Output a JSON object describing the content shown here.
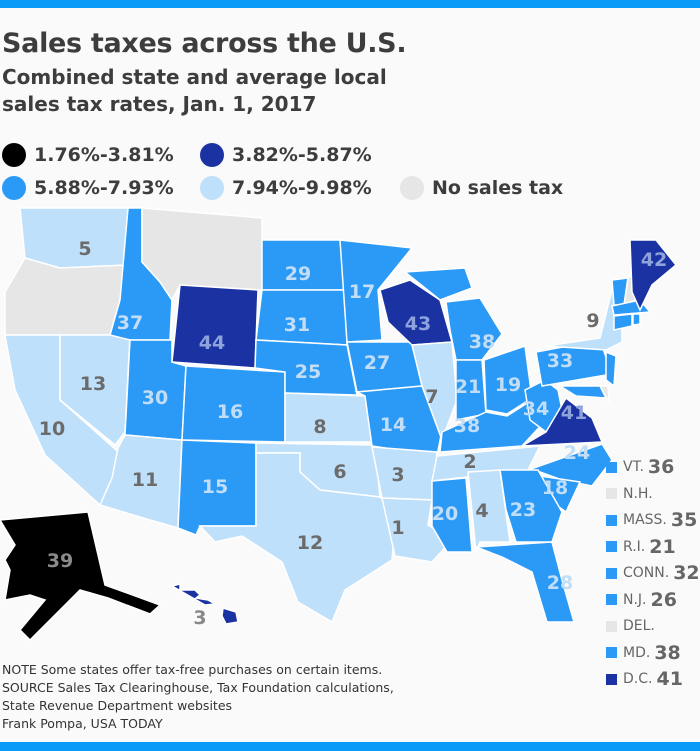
{
  "title": "Sales taxes across the U.S.",
  "subtitle": "Combined state and average local sales tax rates, Jan. 1, 2017",
  "colors": {
    "black": "#000000",
    "dark": "#1b33a2",
    "medium": "#2b9af7",
    "light": "#bfe0fa",
    "none": "#e6e6e6",
    "accent_bar": "#0a9af8"
  },
  "legend": [
    {
      "label": "1.76%-3.81%",
      "category": "black"
    },
    {
      "label": "3.82%-5.87%",
      "category": "dark"
    },
    {
      "label": "5.88%-7.93%",
      "category": "medium"
    },
    {
      "label": "7.94%-9.98%",
      "category": "light"
    },
    {
      "label": "No sales tax",
      "category": "none"
    }
  ],
  "states": [
    {
      "abbr": "WA",
      "rank": "5",
      "category": "light"
    },
    {
      "abbr": "OR",
      "rank": "",
      "category": "none"
    },
    {
      "abbr": "CA",
      "rank": "10",
      "category": "light"
    },
    {
      "abbr": "NV",
      "rank": "13",
      "category": "light"
    },
    {
      "abbr": "ID",
      "rank": "37",
      "category": "medium"
    },
    {
      "abbr": "MT",
      "rank": "",
      "category": "none"
    },
    {
      "abbr": "WY",
      "rank": "44",
      "category": "dark"
    },
    {
      "abbr": "UT",
      "rank": "30",
      "category": "medium"
    },
    {
      "abbr": "CO",
      "rank": "16",
      "category": "medium"
    },
    {
      "abbr": "AZ",
      "rank": "11",
      "category": "light"
    },
    {
      "abbr": "NM",
      "rank": "15",
      "category": "medium"
    },
    {
      "abbr": "ND",
      "rank": "29",
      "category": "medium"
    },
    {
      "abbr": "SD",
      "rank": "31",
      "category": "medium"
    },
    {
      "abbr": "NE",
      "rank": "25",
      "category": "medium"
    },
    {
      "abbr": "KS",
      "rank": "8",
      "category": "light"
    },
    {
      "abbr": "OK",
      "rank": "6",
      "category": "light"
    },
    {
      "abbr": "TX",
      "rank": "12",
      "category": "light"
    },
    {
      "abbr": "MN",
      "rank": "17",
      "category": "medium"
    },
    {
      "abbr": "IA",
      "rank": "27",
      "category": "medium"
    },
    {
      "abbr": "MO",
      "rank": "14",
      "category": "medium"
    },
    {
      "abbr": "AR",
      "rank": "3",
      "category": "light"
    },
    {
      "abbr": "LA",
      "rank": "1",
      "category": "light"
    },
    {
      "abbr": "WI",
      "rank": "43",
      "category": "dark"
    },
    {
      "abbr": "IL",
      "rank": "7",
      "category": "light"
    },
    {
      "abbr": "MI",
      "rank": "38",
      "category": "medium"
    },
    {
      "abbr": "IN",
      "rank": "21",
      "category": "medium"
    },
    {
      "abbr": "OH",
      "rank": "19",
      "category": "medium"
    },
    {
      "abbr": "KY",
      "rank": "38",
      "category": "medium"
    },
    {
      "abbr": "WV",
      "rank": "34",
      "category": "medium"
    },
    {
      "abbr": "TN",
      "rank": "2",
      "category": "light"
    },
    {
      "abbr": "VA",
      "rank": "41",
      "category": "dark"
    },
    {
      "abbr": "NC",
      "rank": "24",
      "category": "medium"
    },
    {
      "abbr": "SC",
      "rank": "18",
      "category": "medium"
    },
    {
      "abbr": "GA",
      "rank": "23",
      "category": "medium"
    },
    {
      "abbr": "AL",
      "rank": "4",
      "category": "light"
    },
    {
      "abbr": "MS",
      "rank": "20",
      "category": "medium"
    },
    {
      "abbr": "FL",
      "rank": "28",
      "category": "medium"
    },
    {
      "abbr": "PA",
      "rank": "33",
      "category": "medium"
    },
    {
      "abbr": "NY",
      "rank": "9",
      "category": "light"
    },
    {
      "abbr": "NJ",
      "rank": "",
      "category": "medium"
    },
    {
      "abbr": "DE",
      "rank": "",
      "category": "none"
    },
    {
      "abbr": "MD",
      "rank": "",
      "category": "medium"
    },
    {
      "abbr": "VT",
      "rank": "",
      "category": "medium"
    },
    {
      "abbr": "NH",
      "rank": "",
      "category": "none"
    },
    {
      "abbr": "MA",
      "rank": "",
      "category": "medium"
    },
    {
      "abbr": "CT",
      "rank": "",
      "category": "medium"
    },
    {
      "abbr": "RI",
      "rank": "",
      "category": "medium"
    },
    {
      "abbr": "ME",
      "rank": "42",
      "category": "dark"
    },
    {
      "abbr": "AK",
      "rank": "39",
      "category": "black"
    },
    {
      "abbr": "HI",
      "rank": "3",
      "category": "dark"
    }
  ],
  "small_states": [
    {
      "label": "VT.",
      "rank": "36",
      "category": "medium"
    },
    {
      "label": "N.H.",
      "rank": "",
      "category": "none"
    },
    {
      "label": "MASS.",
      "rank": "35",
      "category": "medium"
    },
    {
      "label": "R.I.",
      "rank": "21",
      "category": "medium"
    },
    {
      "label": "CONN.",
      "rank": "32",
      "category": "medium"
    },
    {
      "label": "N.J.",
      "rank": "26",
      "category": "medium"
    },
    {
      "label": "DEL.",
      "rank": "",
      "category": "none"
    },
    {
      "label": "MD.",
      "rank": "38",
      "category": "medium"
    },
    {
      "label": "D.C.",
      "rank": "41",
      "category": "dark"
    }
  ],
  "notes": [
    "NOTE Some states offer tax-free purchases on certain items.",
    "SOURCE Sales Tax Clearinghouse, Tax Foundation calculations,",
    "State Revenue Department websites",
    "Frank Pompa, USA TODAY"
  ]
}
